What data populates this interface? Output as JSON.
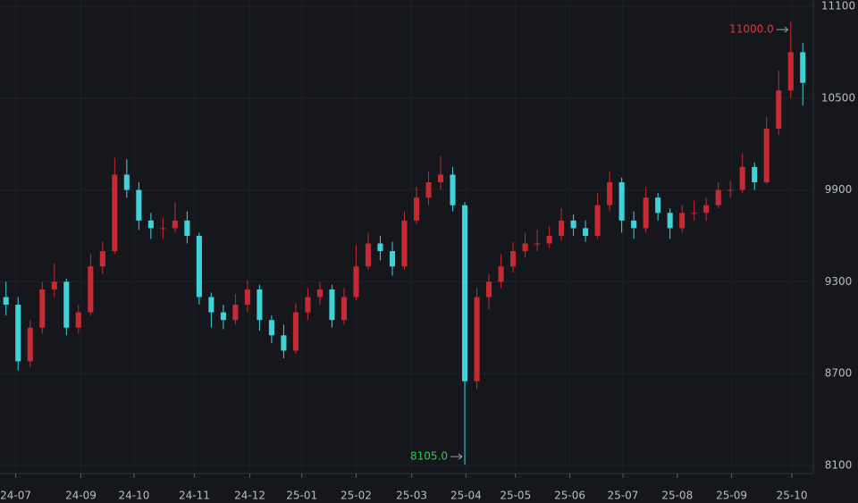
{
  "chart_data": {
    "type": "candlestick",
    "up_color": "#c62a33",
    "down_color": "#3fd2d8",
    "open": [
      9200,
      9150,
      8780,
      9000,
      9250,
      9300,
      9000,
      9100,
      9400,
      9500,
      10000,
      9900,
      9700,
      9650,
      9650,
      9700,
      9600,
      9200,
      9100,
      9050,
      9150,
      9250,
      9050,
      8950,
      8850,
      9100,
      9200,
      9250,
      9050,
      9200,
      9400,
      9550,
      9500,
      9400,
      9700,
      9850,
      9950,
      10000,
      9800,
      8650,
      9200,
      9300,
      9400,
      9500,
      9550,
      9550,
      9600,
      9700,
      9650,
      9600,
      9800,
      9950,
      9700,
      9650,
      9850,
      9750,
      9650,
      9750,
      9750,
      9800,
      9900,
      9900,
      10050,
      9950,
      10300,
      10550,
      10800
    ],
    "high": [
      9300,
      9200,
      9050,
      9300,
      9420,
      9320,
      9150,
      9480,
      9560,
      10110,
      10100,
      9950,
      9750,
      9720,
      9820,
      9760,
      9620,
      9230,
      9150,
      9220,
      9310,
      9280,
      9080,
      9020,
      9160,
      9260,
      9300,
      9280,
      9260,
      9540,
      9620,
      9600,
      9560,
      9760,
      9920,
      10020,
      10120,
      10050,
      9820,
      9260,
      9350,
      9480,
      9560,
      9620,
      9640,
      9660,
      9780,
      9740,
      9700,
      9880,
      10020,
      9980,
      9760,
      9920,
      9880,
      9780,
      9800,
      9830,
      9850,
      9950,
      9960,
      10140,
      10080,
      10380,
      10680,
      11000,
      10860
    ],
    "low": [
      9080,
      8720,
      8740,
      8960,
      9200,
      8950,
      8960,
      9080,
      9350,
      9480,
      9850,
      9640,
      9580,
      9580,
      9620,
      9550,
      9150,
      9000,
      8990,
      9020,
      9100,
      8980,
      8900,
      8800,
      8830,
      9050,
      9150,
      9000,
      9020,
      9180,
      9380,
      9440,
      9340,
      9380,
      9680,
      9800,
      9900,
      9760,
      8105,
      8600,
      9120,
      9260,
      9360,
      9460,
      9500,
      9520,
      9570,
      9600,
      9560,
      9580,
      9760,
      9620,
      9580,
      9620,
      9700,
      9580,
      9620,
      9700,
      9700,
      9780,
      9850,
      9880,
      9900,
      9940,
      10260,
      10500,
      10450
    ],
    "close": [
      9150,
      8780,
      9000,
      9250,
      9300,
      9000,
      9100,
      9400,
      9500,
      10000,
      9900,
      9700,
      9650,
      9650,
      9700,
      9600,
      9200,
      9100,
      9050,
      9150,
      9250,
      9050,
      8950,
      8850,
      9100,
      9200,
      9250,
      9050,
      9200,
      9400,
      9550,
      9500,
      9400,
      9700,
      9850,
      9950,
      10000,
      9800,
      8650,
      9200,
      9300,
      9400,
      9500,
      9550,
      9550,
      9600,
      9700,
      9650,
      9600,
      9800,
      9950,
      9700,
      9650,
      9850,
      9750,
      9650,
      9750,
      9750,
      9800,
      9900,
      9900,
      10050,
      9950,
      10300,
      10550,
      10800,
      10600
    ],
    "ylim": [
      8047,
      11141
    ],
    "yticks": [
      8100,
      8700,
      9300,
      9900,
      10500,
      11100
    ],
    "xlim": [
      0,
      67
    ],
    "xticks": [
      {
        "value": 1.3,
        "label": "24-07"
      },
      {
        "value": 6.7,
        "label": "24-09"
      },
      {
        "value": 11.1,
        "label": "24-10"
      },
      {
        "value": 16.1,
        "label": "24-11"
      },
      {
        "value": 20.7,
        "label": "24-12"
      },
      {
        "value": 25.0,
        "label": "25-01"
      },
      {
        "value": 29.5,
        "label": "25-02"
      },
      {
        "value": 34.1,
        "label": "25-03"
      },
      {
        "value": 38.6,
        "label": "25-04"
      },
      {
        "value": 42.7,
        "label": "25-05"
      },
      {
        "value": 47.2,
        "label": "25-06"
      },
      {
        "value": 51.6,
        "label": "25-07"
      },
      {
        "value": 56.1,
        "label": "25-08"
      },
      {
        "value": 60.6,
        "label": "25-09"
      },
      {
        "value": 65.6,
        "label": "25-10"
      }
    ],
    "grid": true,
    "annotations": [
      {
        "label": "11000.0",
        "value": 11000,
        "color": "#e5323b"
      },
      {
        "label": "8105.0",
        "value": 8105,
        "color": "#2fc75a"
      }
    ]
  }
}
